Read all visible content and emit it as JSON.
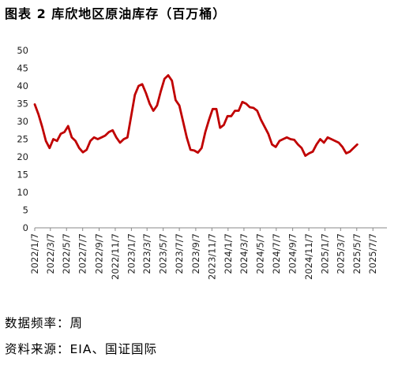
{
  "title": "图表 2 库欣地区原油库存（百万桶）",
  "notes": {
    "frequency": "数据频率：周",
    "source": "资料来源：EIA、国证国际"
  },
  "chart_data": {
    "type": "line",
    "title": "",
    "xlabel": "",
    "ylabel": "",
    "ylim": [
      0,
      50
    ],
    "yticks": [
      0,
      5,
      10,
      15,
      20,
      25,
      30,
      35,
      40,
      45,
      50
    ],
    "xtick_labels": [
      "2022/1/7",
      "2022/3/7",
      "2022/5/7",
      "2022/7/7",
      "2022/9/7",
      "2022/11/7",
      "2023/1/7",
      "2023/3/7",
      "2023/5/7",
      "2023/7/7",
      "2023/9/7",
      "2023/11/7",
      "2024/1/7",
      "2024/3/7",
      "2024/5/7",
      "2024/7/7",
      "2024/9/7",
      "2024/11/7",
      "2025/1/7",
      "2025/3/7",
      "2025/5/7",
      "2025/7/7"
    ],
    "x_range": [
      "2022-01-07",
      "2025-08-29"
    ],
    "grid": false,
    "legend": "none",
    "series": [
      {
        "color": "#c00000",
        "points": [
          [
            "2022-01-07",
            34.8
          ],
          [
            "2022-01-21",
            32.0
          ],
          [
            "2022-02-04",
            28.5
          ],
          [
            "2022-02-18",
            24.5
          ],
          [
            "2022-03-04",
            22.5
          ],
          [
            "2022-03-18",
            25.0
          ],
          [
            "2022-04-01",
            24.5
          ],
          [
            "2022-04-15",
            26.5
          ],
          [
            "2022-04-29",
            27.0
          ],
          [
            "2022-05-13",
            28.7
          ],
          [
            "2022-05-27",
            25.5
          ],
          [
            "2022-06-10",
            24.5
          ],
          [
            "2022-06-24",
            22.5
          ],
          [
            "2022-07-08",
            21.3
          ],
          [
            "2022-07-22",
            22.0
          ],
          [
            "2022-08-05",
            24.5
          ],
          [
            "2022-08-19",
            25.5
          ],
          [
            "2022-09-02",
            25.0
          ],
          [
            "2022-09-16",
            25.5
          ],
          [
            "2022-09-30",
            26.0
          ],
          [
            "2022-10-14",
            27.0
          ],
          [
            "2022-10-28",
            27.5
          ],
          [
            "2022-11-11",
            25.5
          ],
          [
            "2022-11-25",
            24.0
          ],
          [
            "2022-12-09",
            25.0
          ],
          [
            "2022-12-23",
            25.5
          ],
          [
            "2023-01-06",
            31.5
          ],
          [
            "2023-01-20",
            37.5
          ],
          [
            "2023-02-03",
            40.0
          ],
          [
            "2023-02-17",
            40.5
          ],
          [
            "2023-03-03",
            38.0
          ],
          [
            "2023-03-17",
            35.0
          ],
          [
            "2023-03-31",
            33.0
          ],
          [
            "2023-04-14",
            34.5
          ],
          [
            "2023-04-28",
            38.5
          ],
          [
            "2023-05-12",
            42.0
          ],
          [
            "2023-05-26",
            43.0
          ],
          [
            "2023-06-09",
            41.5
          ],
          [
            "2023-06-23",
            36.0
          ],
          [
            "2023-07-07",
            34.5
          ],
          [
            "2023-07-21",
            30.0
          ],
          [
            "2023-08-04",
            25.5
          ],
          [
            "2023-08-18",
            22.0
          ],
          [
            "2023-09-01",
            21.8
          ],
          [
            "2023-09-15",
            21.2
          ],
          [
            "2023-09-29",
            22.5
          ],
          [
            "2023-10-13",
            27.0
          ],
          [
            "2023-10-27",
            30.5
          ],
          [
            "2023-11-10",
            33.5
          ],
          [
            "2023-11-24",
            33.5
          ],
          [
            "2023-12-08",
            28.2
          ],
          [
            "2023-12-22",
            29.0
          ],
          [
            "2024-01-05",
            31.5
          ],
          [
            "2024-01-19",
            31.5
          ],
          [
            "2024-02-02",
            33.0
          ],
          [
            "2024-02-16",
            33.0
          ],
          [
            "2024-03-01",
            35.5
          ],
          [
            "2024-03-15",
            35.0
          ],
          [
            "2024-03-29",
            34.0
          ],
          [
            "2024-04-12",
            33.8
          ],
          [
            "2024-04-26",
            33.0
          ],
          [
            "2024-05-10",
            30.5
          ],
          [
            "2024-05-24",
            28.5
          ],
          [
            "2024-06-07",
            26.5
          ],
          [
            "2024-06-21",
            23.5
          ],
          [
            "2024-07-05",
            22.8
          ],
          [
            "2024-07-19",
            24.5
          ],
          [
            "2024-08-02",
            25.0
          ],
          [
            "2024-08-16",
            25.5
          ],
          [
            "2024-08-30",
            25.0
          ],
          [
            "2024-09-13",
            24.8
          ],
          [
            "2024-09-27",
            23.5
          ],
          [
            "2024-10-11",
            22.5
          ],
          [
            "2024-10-25",
            20.3
          ],
          [
            "2024-11-08",
            21.0
          ],
          [
            "2024-11-22",
            21.5
          ],
          [
            "2024-12-06",
            23.5
          ],
          [
            "2024-12-20",
            25.0
          ],
          [
            "2025-01-03",
            24.0
          ],
          [
            "2025-01-17",
            25.5
          ],
          [
            "2025-01-31",
            25.0
          ],
          [
            "2025-02-14",
            24.5
          ],
          [
            "2025-02-28",
            24.0
          ],
          [
            "2025-03-14",
            22.8
          ],
          [
            "2025-03-28",
            21.0
          ],
          [
            "2025-04-11",
            21.5
          ],
          [
            "2025-04-25",
            22.5
          ],
          [
            "2025-05-09",
            23.5
          ]
        ]
      }
    ]
  }
}
